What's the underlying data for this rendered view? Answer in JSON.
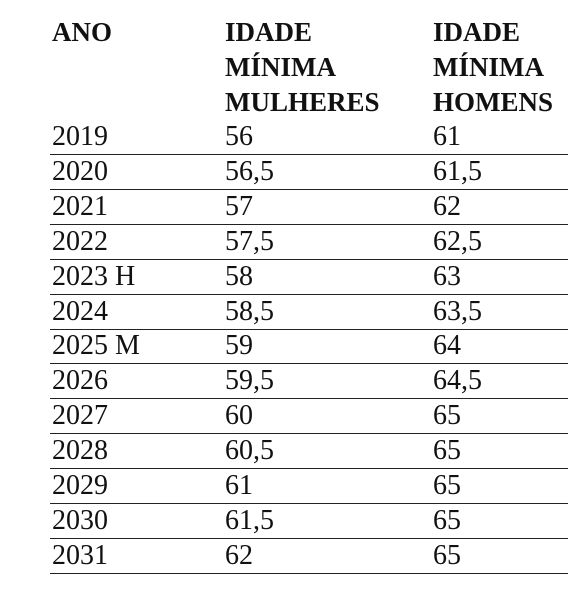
{
  "table": {
    "header": [
      [
        "ANO"
      ],
      [
        "IDADE",
        "MÍNIMA",
        "MULHERES"
      ],
      [
        "IDADE",
        "MÍNIMA",
        "HOMENS"
      ]
    ],
    "rows": [
      [
        "2019",
        "56",
        "61"
      ],
      [
        "2020",
        "56,5",
        "61,5"
      ],
      [
        "2021",
        "57",
        "62"
      ],
      [
        "2022",
        "57,5",
        "62,5"
      ],
      [
        "2023 H",
        "58",
        "63"
      ],
      [
        "2024",
        "58,5",
        "63,5"
      ],
      [
        "2025 M",
        "59",
        "64"
      ],
      [
        "2026",
        "59,5",
        "64,5"
      ],
      [
        "2027",
        "60",
        "65"
      ],
      [
        "2028",
        "60,5",
        "65"
      ],
      [
        "2029",
        "61",
        "65"
      ],
      [
        "2030",
        "61,5",
        "65"
      ],
      [
        "2031",
        "62",
        "65"
      ]
    ]
  }
}
